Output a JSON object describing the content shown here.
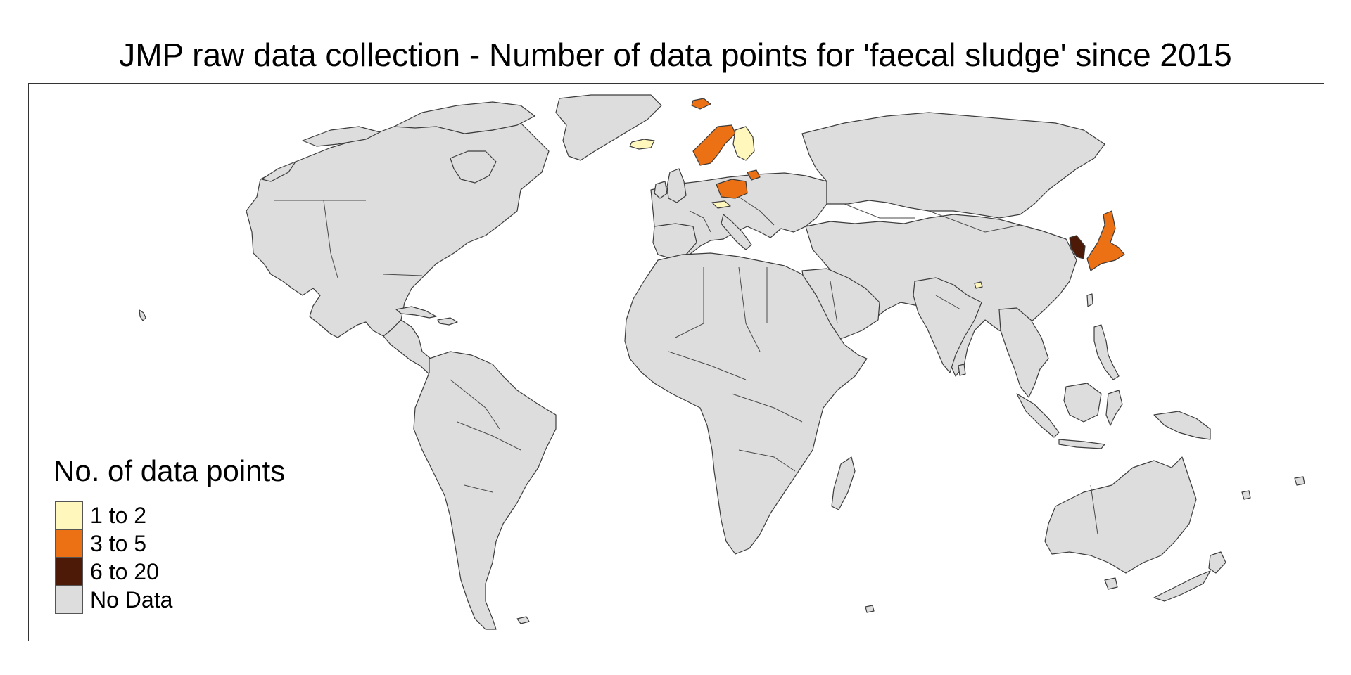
{
  "title": "JMP raw data collection - Number of data points for 'faecal sludge' since 2015",
  "legend": {
    "title": "No. of data points",
    "items": [
      {
        "label": "1 to 2",
        "color": "#fff7bc"
      },
      {
        "label": "3 to 5",
        "color": "#ec7014"
      },
      {
        "label": "6 to 20",
        "color": "#4d1a08"
      },
      {
        "label": "No Data",
        "color": "#dddddd"
      }
    ]
  },
  "chart_data": {
    "type": "choropleth",
    "title": "JMP raw data collection - Number of data points for 'faecal sludge' since 2015",
    "classes": [
      {
        "label": "1 to 2",
        "color": "#fff7bc",
        "countries": [
          "Iceland",
          "Finland",
          "Austria",
          "Bangladesh"
        ]
      },
      {
        "label": "3 to 5",
        "color": "#ec7014",
        "countries": [
          "Svalbard",
          "Norway",
          "Sweden",
          "Poland",
          "Lithuania",
          "Japan"
        ]
      },
      {
        "label": "6 to 20",
        "color": "#4d1a08",
        "countries": [
          "Republic of Korea"
        ]
      },
      {
        "label": "No Data",
        "color": "#dddddd",
        "countries": [
          "All other countries"
        ]
      }
    ]
  }
}
